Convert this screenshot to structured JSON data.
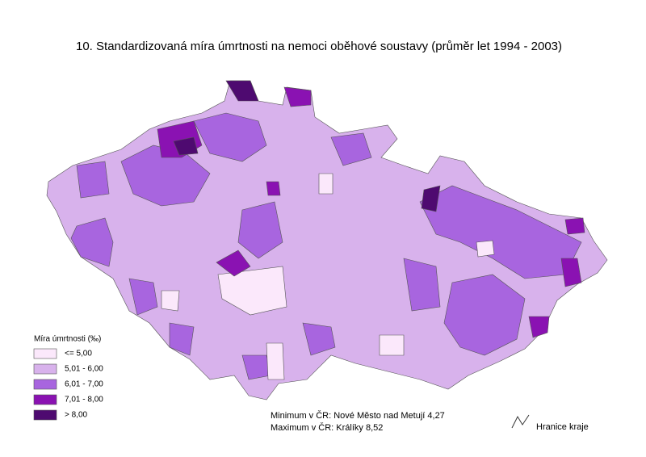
{
  "title": "10. Standardizovaná míra úmrtnosti na nemoci oběhové soustavy (průměr let 1994 - 2003)",
  "legend": {
    "title": "Míra úmrtnosti (‰)",
    "items": [
      {
        "label": "<= 5,00",
        "color": "#fbe8fb"
      },
      {
        "label": "5,01 - 6,00",
        "color": "#d8b2ec"
      },
      {
        "label": "6,01 - 7,00",
        "color": "#a865df"
      },
      {
        "label": "7,01 - 8,00",
        "color": "#8a12b2"
      },
      {
        "label": "> 8,00",
        "color": "#4e0a70"
      }
    ]
  },
  "notes": [
    "Minimum v ČR: Nové Město nad Metují 4,27",
    "Maximum v ČR: Králíky 8,52"
  ],
  "border_legend": "Hranice kraje"
}
